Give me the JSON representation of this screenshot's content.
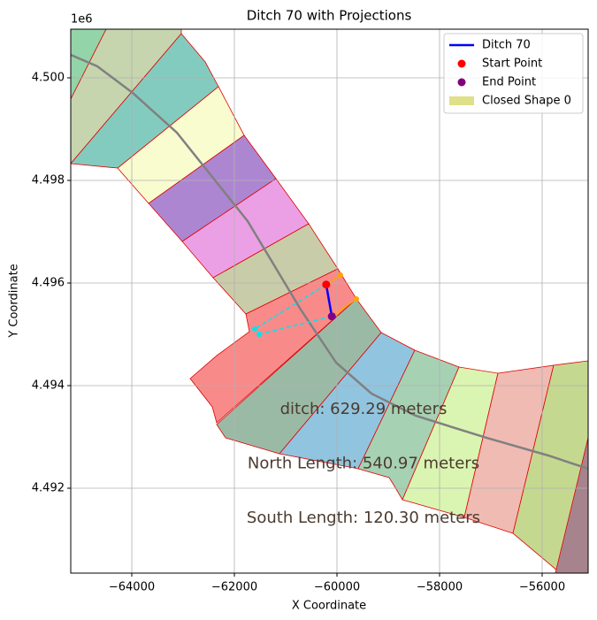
{
  "chart_data": {
    "type": "map",
    "title": "Ditch 70 with Projections",
    "xlabel": "X Coordinate",
    "ylabel": "Y Coordinate",
    "y_offset_label": "1e6",
    "xlim": [
      -65190,
      -55103
    ],
    "ylim": [
      4490345,
      4500948
    ],
    "xticks": [
      {
        "value": -64000,
        "label": "−64000"
      },
      {
        "value": -62000,
        "label": "−62000"
      },
      {
        "value": -60000,
        "label": "−60000"
      },
      {
        "value": -58000,
        "label": "−58000"
      },
      {
        "value": -56000,
        "label": "−56000"
      }
    ],
    "yticks": [
      {
        "value": 4492000,
        "label": "4.492"
      },
      {
        "value": 4494000,
        "label": "4.494"
      },
      {
        "value": 4496000,
        "label": "4.496"
      },
      {
        "value": 4498000,
        "label": "4.498"
      },
      {
        "value": 4500000,
        "label": "4.500"
      }
    ],
    "grid": true,
    "legend": "upper right",
    "shapes": [
      {
        "color": "#94d4a9",
        "points": [
          [
            -65190,
            4500948
          ],
          [
            -64500,
            4500948
          ],
          [
            -65190,
            4499586
          ]
        ]
      },
      {
        "color": "#c6d5ae",
        "points": [
          [
            -64500,
            4500948
          ],
          [
            -63035,
            4500948
          ],
          [
            -63035,
            4500862
          ],
          [
            -65190,
            4498328
          ],
          [
            -65190,
            4499586
          ]
        ]
      },
      {
        "color": "#84cbbf",
        "points": [
          [
            -63035,
            4500862
          ],
          [
            -62569,
            4500310
          ],
          [
            -62310,
            4499828
          ],
          [
            -64276,
            4498241
          ],
          [
            -65190,
            4498328
          ]
        ]
      },
      {
        "color": "#f8fccf",
        "points": [
          [
            -62310,
            4499828
          ],
          [
            -61810,
            4498879
          ],
          [
            -63672,
            4497552
          ],
          [
            -64276,
            4498241
          ]
        ]
      },
      {
        "color": "#ad86d2",
        "points": [
          [
            -61810,
            4498879
          ],
          [
            -61190,
            4498035
          ],
          [
            -63017,
            4496810
          ],
          [
            -63672,
            4497552
          ]
        ]
      },
      {
        "color": "#eba0e6",
        "points": [
          [
            -61190,
            4498035
          ],
          [
            -60552,
            4497155
          ],
          [
            -62414,
            4496104
          ],
          [
            -63017,
            4496810
          ]
        ]
      },
      {
        "color": "#c9cca8",
        "points": [
          [
            -60552,
            4497155
          ],
          [
            -59983,
            4496276
          ],
          [
            -61776,
            4495397
          ],
          [
            -62414,
            4496104
          ]
        ]
      },
      {
        "color": "#f98a8a",
        "points": [
          [
            -59983,
            4496276
          ],
          [
            -59621,
            4495690
          ],
          [
            -62345,
            4493276
          ],
          [
            -62431,
            4493587
          ],
          [
            -62862,
            4494138
          ],
          [
            -62345,
            4494586
          ],
          [
            -61707,
            4495052
          ],
          [
            -61776,
            4495397
          ]
        ]
      },
      {
        "color": "#9bbaa6",
        "points": [
          [
            -59621,
            4495690
          ],
          [
            -59138,
            4495035
          ],
          [
            -61121,
            4492672
          ],
          [
            -62172,
            4492983
          ],
          [
            -62345,
            4493242
          ]
        ]
      },
      {
        "color": "#91c4df",
        "points": [
          [
            -59138,
            4495035
          ],
          [
            -58483,
            4494690
          ],
          [
            -59586,
            4492380
          ],
          [
            -61121,
            4492672
          ]
        ]
      },
      {
        "color": "#a6d1b3",
        "points": [
          [
            -58483,
            4494690
          ],
          [
            -57621,
            4494362
          ],
          [
            -58724,
            4491776
          ],
          [
            -58897,
            4492069
          ],
          [
            -58983,
            4492207
          ],
          [
            -59586,
            4492380
          ]
        ]
      },
      {
        "color": "#daf5b1",
        "points": [
          [
            -57621,
            4494362
          ],
          [
            -56862,
            4494241
          ],
          [
            -57518,
            4491431
          ],
          [
            -58724,
            4491776
          ]
        ]
      },
      {
        "color": "#f0bbb3",
        "points": [
          [
            -56862,
            4494241
          ],
          [
            -55776,
            4494397
          ],
          [
            -56569,
            4491121
          ],
          [
            -57518,
            4491431
          ]
        ]
      },
      {
        "color": "#c5d88f",
        "points": [
          [
            -55776,
            4494397
          ],
          [
            -55103,
            4494483
          ],
          [
            -55103,
            4492983
          ],
          [
            -55707,
            4490397
          ],
          [
            -56569,
            4491121
          ]
        ]
      },
      {
        "color": "#a7838e",
        "points": [
          [
            -55103,
            4492983
          ],
          [
            -55103,
            4490345
          ],
          [
            -55742,
            4490345
          ]
        ]
      }
    ],
    "path": {
      "color": "#808080",
      "x": [
        -65190,
        -64672,
        -63983,
        -63121,
        -62431,
        -61742,
        -61224,
        -60707,
        -60017,
        -59328,
        -58466,
        -57087,
        -55880,
        -55104
      ],
      "y": [
        4500448,
        4500224,
        4499707,
        4498931,
        4498069,
        4497207,
        4496345,
        4495483,
        4494449,
        4493845,
        4493414,
        4492983,
        4492638,
        4492380
      ]
    },
    "projections": [
      {
        "color": "#00e5ee",
        "dashed": true,
        "x": [
          -60210,
          -61604
        ],
        "y": [
          4495970,
          4495104
        ]
      },
      {
        "color": "#00e5ee",
        "dashed": true,
        "x": [
          -60100,
          -61517
        ],
        "y": [
          4495350,
          4495000
        ]
      },
      {
        "color": "#ffa500",
        "dashed": false,
        "x": [
          -60210,
          -59931
        ],
        "y": [
          4495970,
          4496155
        ]
      },
      {
        "color": "#ffa500",
        "dashed": false,
        "x": [
          -60100,
          -59621
        ],
        "y": [
          4495350,
          4495690
        ]
      }
    ],
    "ditch": {
      "name": "Ditch 70",
      "color": "#0000ff",
      "x": [
        -60210,
        -60100
      ],
      "y": [
        4495970,
        4495350
      ]
    },
    "start_point": {
      "name": "Start Point",
      "color": "#ff0000",
      "x": -60210,
      "y": 4495970
    },
    "end_point": {
      "name": "End Point",
      "color": "#800080",
      "x": -60100,
      "y": 4495350
    },
    "closed_shape": {
      "name": "Closed Shape 0",
      "color": "#e0e08a"
    },
    "annotations": [
      {
        "text": "ditch: 629.29 meters",
        "color": "#4b3b30"
      },
      {
        "text": "North Length: 540.97 meters",
        "color": "#4b3b30"
      },
      {
        "text": "South Length: 120.30 meters",
        "color": "#4b3b30"
      }
    ]
  }
}
